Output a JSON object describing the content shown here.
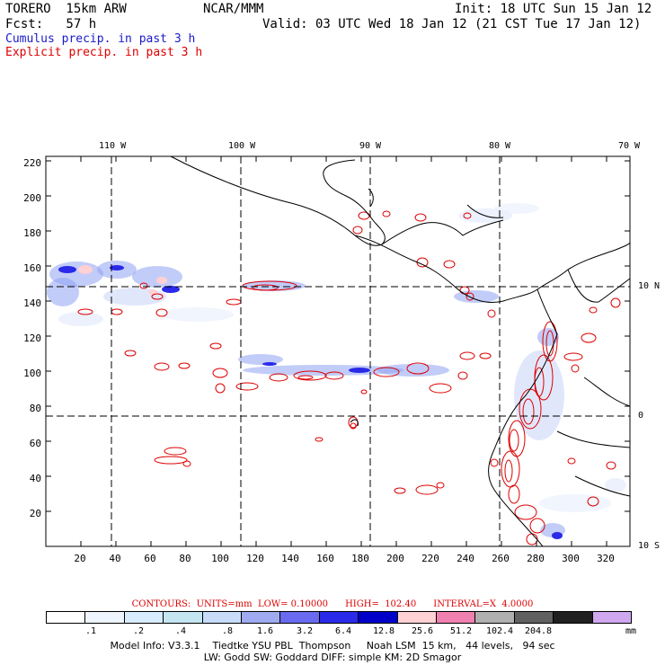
{
  "header": {
    "model": "TORERO  15km ARW",
    "org": "NCAR/MMM",
    "init": "Init: 18 UTC Sun 15 Jan 12",
    "fcst": "Fcst:   57 h",
    "valid": "Valid: 03 UTC Wed 18 Jan 12 (21 CST Tue 17 Jan 12)",
    "cumulus": "Cumulus precip. in past 3 h",
    "explicit": "Explicit precip. in past 3 h"
  },
  "map": {
    "lon_labels": [
      "110 W",
      "100 W",
      "90 W",
      "80 W",
      "70 W"
    ],
    "lat_labels": [
      "10 N",
      "0",
      "10 S"
    ],
    "x_ticks": [
      "20",
      "40",
      "60",
      "80",
      "100",
      "120",
      "140",
      "160",
      "180",
      "200",
      "220",
      "240",
      "260",
      "280",
      "300",
      "320"
    ],
    "y_ticks": [
      "220",
      "200",
      "180",
      "160",
      "140",
      "120",
      "100",
      "80",
      "60",
      "40",
      "20"
    ],
    "colors": {
      "cumulus": "#2222dd",
      "explicit": "#dd0000",
      "coast": "#000000",
      "grid": "#000000"
    }
  },
  "contour_line": "CONTOURS:  UNITS=mm  LOW= 0.10000      HIGH=  102.40      INTERVAL=X  4.0000",
  "legend": {
    "colors": [
      "#ffffff",
      "#eef5ff",
      "#d8ecff",
      "#c4e6f0",
      "#c8dcf8",
      "#a0aaf0",
      "#6a6af0",
      "#2a2ae8",
      "#0000c8",
      "#ffd0d4",
      "#f080b0",
      "#b0b0b0",
      "#606060",
      "#202020",
      "#d0a8f0"
    ],
    "labels": [
      ".1",
      ".2",
      ".4",
      ".8",
      "1.6",
      "3.2",
      "6.4",
      "12.8",
      "25.6",
      "51.2",
      "102.4",
      "204.8"
    ],
    "units": "mm"
  },
  "footer": {
    "line1": "Model Info: V3.3.1    Tiedtke YSU PBL  Thompson     Noah LSM  15 km,   44 levels,   94 sec",
    "line2": "LW: Godd SW: Goddard DIFF: simple KM: 2D Smagor"
  }
}
